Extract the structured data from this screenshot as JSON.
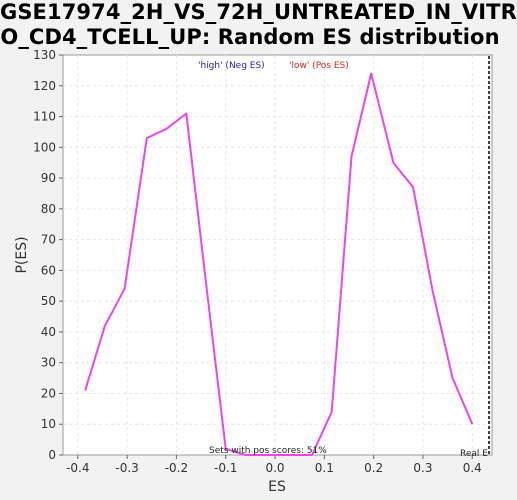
{
  "title_line1": "GSE17974_2H_VS_72H_UNTREATED_IN_VITR",
  "title_line2": "O_CD4_TCELL_UP: Random ES distribution",
  "chart_data": {
    "type": "line",
    "xlabel": "ES",
    "ylabel": "P(ES)",
    "xlim": [
      -0.43,
      0.44
    ],
    "ylim": [
      0,
      130
    ],
    "x_ticks": [
      -0.4,
      -0.3,
      -0.2,
      -0.1,
      0.0,
      0.1,
      0.2,
      0.3,
      0.4
    ],
    "x_tick_labels": [
      "-0.4",
      "-0.3",
      "-0.2",
      "-0.1",
      "0.0",
      "0.1",
      "0.2",
      "0.3",
      "0.4"
    ],
    "y_ticks": [
      0,
      10,
      20,
      30,
      40,
      50,
      60,
      70,
      80,
      90,
      100,
      110,
      120,
      130
    ],
    "grid": true,
    "line_color": "#ee44ee",
    "series": [
      {
        "x": [
          -0.385,
          -0.345,
          -0.305,
          -0.26,
          -0.22,
          -0.18,
          -0.14,
          -0.1,
          -0.06,
          0.075,
          0.115,
          0.155,
          0.195,
          0.24,
          0.28,
          0.32,
          0.36,
          0.4
        ],
        "y": [
          21,
          42,
          54,
          103,
          106,
          111,
          56,
          2,
          0,
          0,
          14,
          97,
          124,
          95,
          87,
          53,
          25,
          10
        ]
      }
    ],
    "legend": {
      "high_label": "'high' (Neg ES)",
      "high_color": "#2222bb",
      "low_label": "'low' (Pos ES)",
      "low_color": "#dd2222",
      "placement": "top-center"
    },
    "annotation": "Sets with pos scores: 51%",
    "real_es_label": "Real E"
  }
}
